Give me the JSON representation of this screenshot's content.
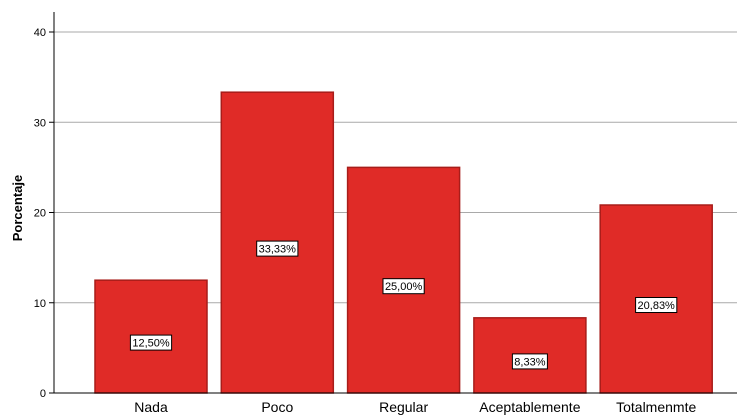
{
  "chart_data": {
    "type": "bar",
    "categories": [
      "Nada",
      "Poco",
      "Regular",
      "Aceptablemente",
      "Totalmenmte"
    ],
    "values": [
      12.5,
      33.33,
      25.0,
      8.33,
      20.83
    ],
    "data_labels": [
      "12,50%",
      "33,33%",
      "25,00%",
      "8,33%",
      "20,83%"
    ],
    "title": "",
    "xlabel": "",
    "ylabel": "Porcentaje",
    "ylim": [
      0,
      40
    ],
    "yticks": [
      0,
      10,
      20,
      30,
      40
    ],
    "grid": true,
    "bar_color": "#e02b27",
    "bar_edge_color": "#a81d1a"
  }
}
